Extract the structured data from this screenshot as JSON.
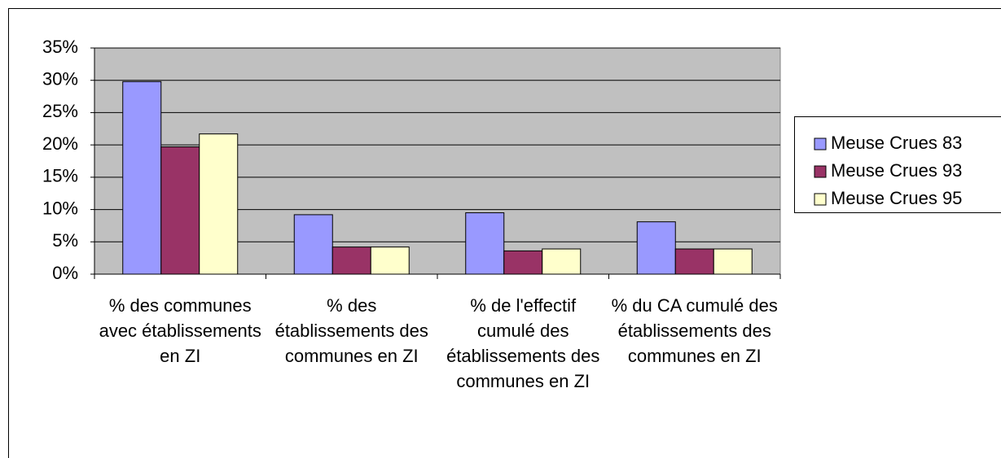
{
  "chart_data": {
    "type": "bar",
    "categories": [
      "% des communes avec établissements en ZI",
      "% des établissements des communes en ZI",
      "% de l'effectif cumulé des établissements des communes en ZI",
      "% du CA cumulé des établissements des communes en ZI"
    ],
    "series": [
      {
        "name": "Meuse Crues 83",
        "color": "#9999ff",
        "values": [
          29.8,
          9.2,
          9.5,
          8.1
        ]
      },
      {
        "name": "Meuse Crues 93",
        "color": "#993366",
        "values": [
          19.7,
          4.2,
          3.6,
          3.9
        ]
      },
      {
        "name": "Meuse Crues 95",
        "color": "#ffffcc",
        "values": [
          21.7,
          4.2,
          3.9,
          3.9
        ]
      }
    ],
    "ylim": [
      0,
      35
    ],
    "yticks": [
      {
        "value": 0,
        "label": "0%"
      },
      {
        "value": 5,
        "label": "5%"
      },
      {
        "value": 10,
        "label": "10%"
      },
      {
        "value": 15,
        "label": "15%"
      },
      {
        "value": 20,
        "label": "20%"
      },
      {
        "value": 25,
        "label": "25%"
      },
      {
        "value": 30,
        "label": "30%"
      },
      {
        "value": 35,
        "label": "35%"
      }
    ],
    "grid": true,
    "legend": "right"
  }
}
